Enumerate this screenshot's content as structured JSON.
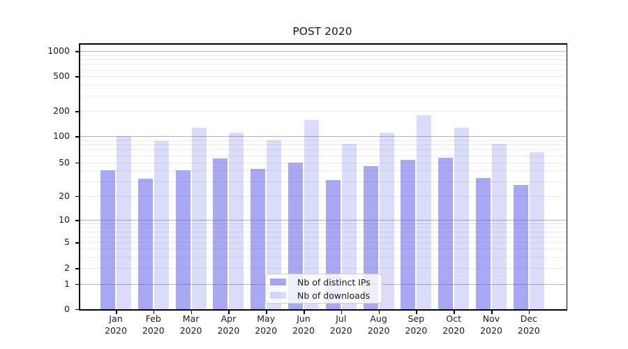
{
  "title": "POST 2020",
  "chart_data": {
    "type": "bar",
    "title": "POST 2020",
    "categories": [
      "Jan 2020",
      "Feb 2020",
      "Mar 2020",
      "Apr 2020",
      "May 2020",
      "Jun 2020",
      "Jul 2020",
      "Aug 2020",
      "Sep 2020",
      "Oct 2020",
      "Nov 2020",
      "Dec 2020"
    ],
    "series": [
      {
        "name": "Nb of distinct IPs",
        "base_color": "#5858e8",
        "alpha": 0.52,
        "values": [
          40,
          32,
          40,
          56,
          42,
          50,
          31,
          45,
          54,
          57,
          33,
          27
        ]
      },
      {
        "name": "Nb of downloads",
        "base_color": "#5858e8",
        "alpha": 0.215,
        "values": [
          100,
          88,
          125,
          110,
          90,
          155,
          82,
          110,
          178,
          125,
          82,
          66
        ]
      }
    ],
    "xlabel": "",
    "ylabel": "",
    "yscale": "symlog",
    "yticks": [
      0,
      1,
      2,
      5,
      10,
      20,
      50,
      100,
      200,
      500,
      1000
    ],
    "ylim": [
      0,
      1200
    ],
    "grid": "both",
    "grid_major_color": "#b2b2b2",
    "grid_minor_color": "#e9e9e9",
    "legend_position": "lower center",
    "legend_border_color": "#cccccc"
  },
  "legend": {
    "items": [
      {
        "label": "Nb of distinct IPs"
      },
      {
        "label": "Nb of downloads"
      }
    ]
  }
}
